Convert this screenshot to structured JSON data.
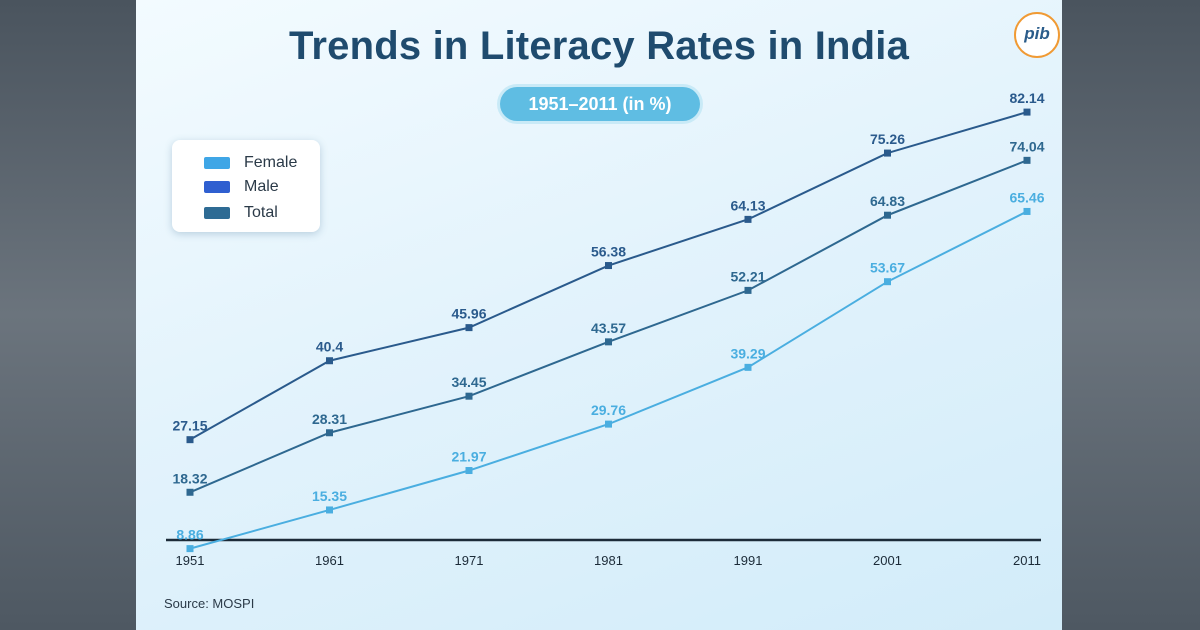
{
  "title": "Trends in Literacy Rates in India",
  "subtitle": "1951–2011 (in %)",
  "logo_text": "pib",
  "source": "Source: MOSPI",
  "chart_data": {
    "type": "line",
    "title": "Trends in Literacy Rates in India",
    "subtitle": "1951–2011 (in %)",
    "x": [
      "1951",
      "1961",
      "1971",
      "1981",
      "1991",
      "2001",
      "2011"
    ],
    "xlabel": "",
    "ylabel": "",
    "ylim": [
      0,
      90
    ],
    "grid": false,
    "legend_position": "top-left",
    "series": [
      {
        "name": "Female",
        "color": "#4aaee0",
        "values": [
          8.86,
          15.35,
          21.97,
          29.76,
          39.29,
          53.67,
          65.46
        ]
      },
      {
        "name": "Male",
        "color": "#2a5a8c",
        "values": [
          27.15,
          40.4,
          45.96,
          56.38,
          64.13,
          75.26,
          82.14
        ]
      },
      {
        "name": "Total",
        "color": "#2e6890",
        "values": [
          18.32,
          28.31,
          34.45,
          43.57,
          52.21,
          64.83,
          74.04
        ]
      }
    ]
  },
  "legend": [
    {
      "label": "Female",
      "color": "#3fa6e6"
    },
    {
      "label": "Male",
      "color": "#2f5fd0"
    },
    {
      "label": "Total",
      "color": "#2e6b94"
    }
  ]
}
